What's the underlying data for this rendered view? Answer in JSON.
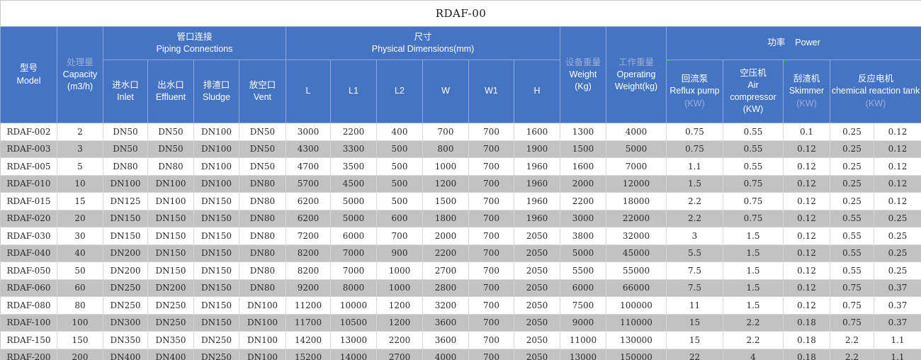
{
  "title": "RDAF-00",
  "colors": {
    "header_blue": "#4574c4",
    "stripe_gray": "#c2c2c2",
    "dim_header_text": "#9bafd6",
    "marker_green": "#2da44e"
  },
  "icons": {
    "corner_marker": "green-triangle"
  },
  "table": {
    "headers": {
      "model": {
        "zh": "型号",
        "en": "Model"
      },
      "capacity": {
        "zh": "处理量",
        "en": "Capacity",
        "unit": "(m3/h)"
      },
      "piping_group": {
        "zh": "管口连接",
        "en": "Piping Connections"
      },
      "inlet": {
        "zh": "进水口",
        "en": "Inlet"
      },
      "effluent": {
        "zh": "出水口",
        "en": "Effluent"
      },
      "sludge": {
        "zh": "排渣口",
        "en": "Sludge"
      },
      "vent": {
        "zh": "放空口",
        "en": "Vent"
      },
      "dims_group": {
        "zh": "尺寸",
        "en": "Physical Dimensions(mm)"
      },
      "dims_cols": [
        "L",
        "L1",
        "L2",
        "W",
        "W1",
        "H"
      ],
      "weight": {
        "zh": "设备重量",
        "en": "Weight",
        "unit": "(Kg)"
      },
      "operating_weight": {
        "zh": "工作重量",
        "en": "Operating",
        "en2": "Weight(kg)"
      },
      "power_group": {
        "zh": "功率",
        "en": "Power"
      },
      "reflux_pump": {
        "zh": "回流泵",
        "en": "Reflux pump",
        "unit": "(KW)"
      },
      "air_compressor": {
        "zh": "空压机",
        "en": "Air compressor",
        "unit": "(KW)"
      },
      "skimmer": {
        "zh": "刮渣机",
        "en": "Skimmer",
        "unit": "(KW)"
      },
      "reaction_tank": {
        "zh": "反应电机",
        "en": "chemical reaction tank",
        "unit": "(KW)"
      }
    },
    "rows": [
      [
        "RDAF-002",
        "2",
        "DN50",
        "DN50",
        "DN100",
        "DN50",
        "3000",
        "2200",
        "400",
        "700",
        "700",
        "1600",
        "1300",
        "4000",
        "0.75",
        "0.55",
        "0.1",
        "0.25",
        "0.12"
      ],
      [
        "RDAF-003",
        "3",
        "DN50",
        "DN50",
        "DN100",
        "DN50",
        "4300",
        "3300",
        "500",
        "800",
        "700",
        "1900",
        "1500",
        "5000",
        "0.75",
        "0.55",
        "0.12",
        "0.25",
        "0.12"
      ],
      [
        "RDAF-005",
        "5",
        "DN80",
        "DN80",
        "DN100",
        "DN50",
        "4700",
        "3500",
        "500",
        "1000",
        "700",
        "1960",
        "1600",
        "7000",
        "1.1",
        "0.55",
        "0.12",
        "0.25",
        "0.12"
      ],
      [
        "RDAF-010",
        "10",
        "DN100",
        "DN100",
        "DN100",
        "DN80",
        "5700",
        "4500",
        "500",
        "1200",
        "700",
        "1960",
        "2000",
        "12000",
        "1.5",
        "0.75",
        "0.12",
        "0.25",
        "0.12"
      ],
      [
        "RDAF-015",
        "15",
        "DN125",
        "DN100",
        "DN150",
        "DN80",
        "6200",
        "5000",
        "500",
        "1500",
        "700",
        "1960",
        "2200",
        "18000",
        "2.2",
        "0.75",
        "0.12",
        "0.25",
        "0.12"
      ],
      [
        "RDAF-020",
        "20",
        "DN150",
        "DN150",
        "DN150",
        "DN80",
        "6200",
        "5000",
        "600",
        "1800",
        "700",
        "1960",
        "3000",
        "22000",
        "2.2",
        "0.75",
        "0.12",
        "0.55",
        "0.25"
      ],
      [
        "RDAF-030",
        "30",
        "DN150",
        "DN150",
        "DN150",
        "DN80",
        "7200",
        "6000",
        "700",
        "2000",
        "700",
        "2050",
        "3800",
        "32000",
        "3",
        "1.5",
        "0.12",
        "0.55",
        "0.25"
      ],
      [
        "RDAF-040",
        "40",
        "DN200",
        "DN150",
        "DN150",
        "DN80",
        "8200",
        "7000",
        "900",
        "2200",
        "700",
        "2050",
        "5000",
        "45000",
        "5.5",
        "1.5",
        "0.12",
        "0.55",
        "0.25"
      ],
      [
        "RDAF-050",
        "50",
        "DN200",
        "DN150",
        "DN150",
        "DN80",
        "8200",
        "7000",
        "1000",
        "2700",
        "700",
        "2050",
        "5500",
        "55000",
        "7.5",
        "1.5",
        "0.12",
        "0.55",
        "0.25"
      ],
      [
        "RDAF-060",
        "60",
        "DN250",
        "DN200",
        "DN150",
        "DN80",
        "9200",
        "8000",
        "1000",
        "2800",
        "700",
        "2050",
        "6000",
        "66000",
        "7.5",
        "1.5",
        "0.12",
        "0.75",
        "0.37"
      ],
      [
        "RDAF-080",
        "80",
        "DN250",
        "DN250",
        "DN150",
        "DN100",
        "11200",
        "10000",
        "1200",
        "3200",
        "700",
        "2050",
        "7500",
        "100000",
        "11",
        "1.5",
        "0.12",
        "0.75",
        "0.37"
      ],
      [
        "RDAF-100",
        "100",
        "DN300",
        "DN250",
        "DN150",
        "DN100",
        "11700",
        "10500",
        "1200",
        "3600",
        "700",
        "2050",
        "9000",
        "110000",
        "15",
        "2.2",
        "0.18",
        "0.75",
        "0.37"
      ],
      [
        "RDAF-150",
        "150",
        "DN350",
        "DN350",
        "DN250",
        "DN100",
        "14200",
        "13000",
        "2200",
        "3600",
        "700",
        "2050",
        "11000",
        "130000",
        "15",
        "2.2",
        "0.18",
        "2.2",
        "1.1"
      ],
      [
        "RDAF-200",
        "200",
        "DN400",
        "DN400",
        "DN250",
        "DN100",
        "15200",
        "14000",
        "2700",
        "4000",
        "700",
        "2050",
        "13000",
        "150000",
        "22",
        "4",
        "0.18",
        "2.2",
        "1.1"
      ]
    ]
  }
}
